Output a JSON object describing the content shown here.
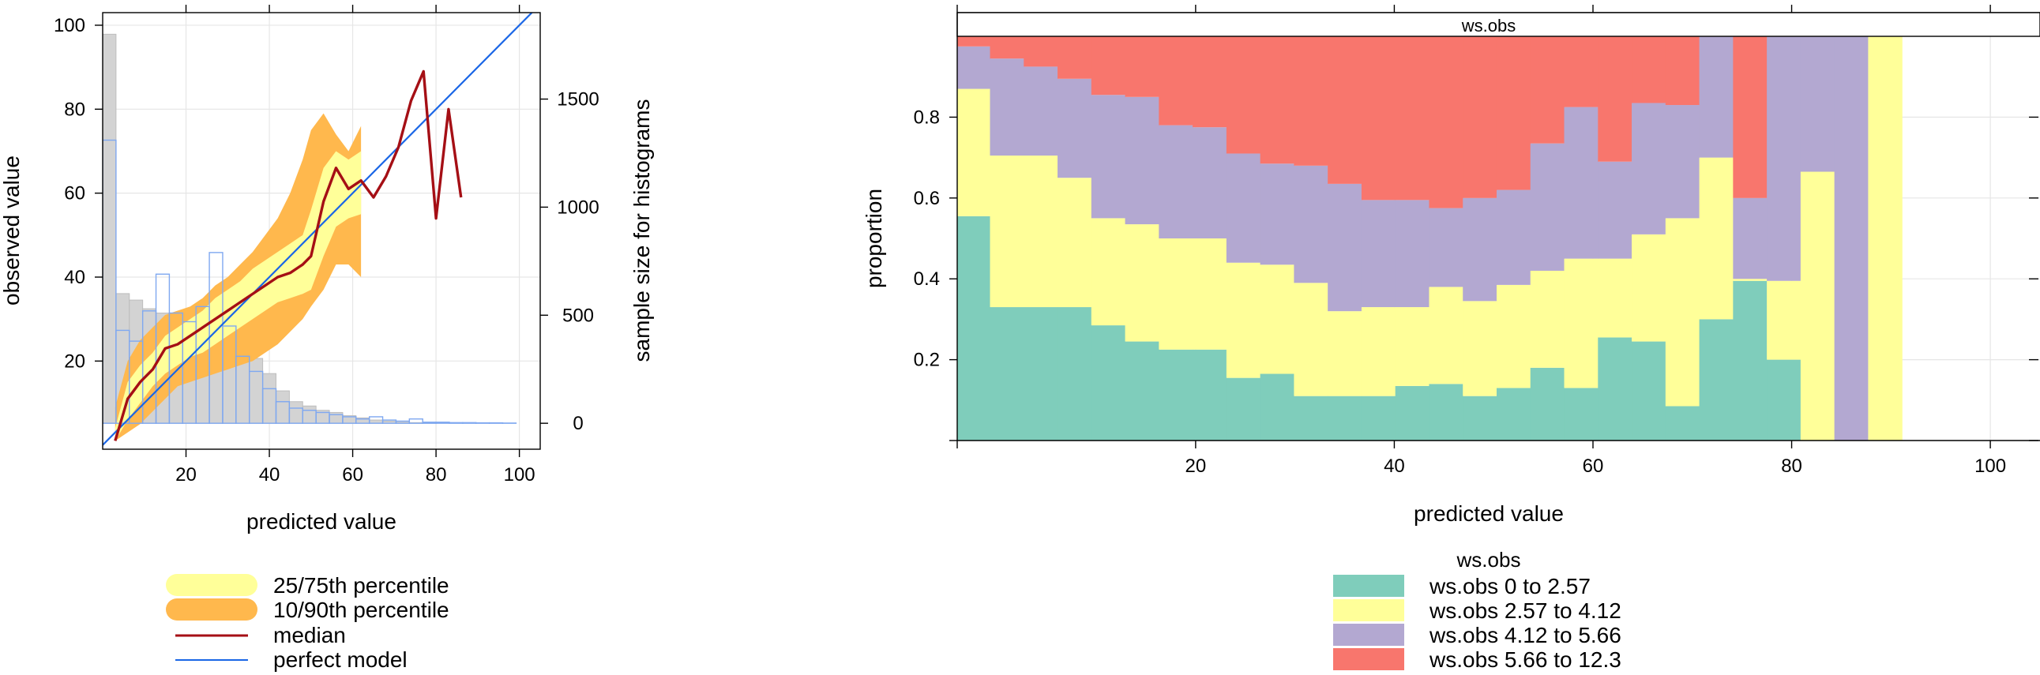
{
  "chart_data": [
    {
      "type": "line",
      "xlabel": "predicted value",
      "ylabel": "observed value",
      "y2label": "sample size for histograms",
      "xlim": [
        0,
        105
      ],
      "ylim": [
        -1,
        103
      ],
      "y2lim": [
        -120,
        1900
      ],
      "x_ticks": [
        "20",
        "40",
        "60",
        "80",
        "100"
      ],
      "y_ticks": [
        "20",
        "40",
        "60",
        "80",
        "100"
      ],
      "y2_ticks": [
        "0",
        "500",
        "1000",
        "1500"
      ],
      "x_tick_values": [
        20,
        40,
        60,
        80,
        100
      ],
      "y_tick_values": [
        20,
        40,
        60,
        80,
        100
      ],
      "y2_tick_values": [
        0,
        500,
        1000,
        1500
      ],
      "grid": true,
      "legend": [
        {
          "label": "25/75th percentile",
          "color": "#FFFF99"
        },
        {
          "label": "10/90th percentile",
          "color": "#FFB84D"
        },
        {
          "label": "median",
          "color": "#A50F15"
        },
        {
          "label": "perfect model",
          "color": "#1A66E6"
        }
      ],
      "median": {
        "x": [
          3,
          6,
          9,
          12,
          15,
          18,
          21,
          24,
          27,
          30,
          33,
          36,
          39,
          42,
          45,
          48,
          50,
          53,
          56,
          59,
          62,
          65,
          68,
          71,
          74,
          77,
          80,
          83,
          86
        ],
        "y": [
          1,
          11,
          15,
          18,
          23,
          24,
          26,
          28,
          30,
          32,
          34,
          36,
          38,
          40,
          41,
          43,
          45,
          58,
          66,
          61,
          63,
          59,
          64,
          71,
          82,
          89,
          54,
          80,
          59
        ]
      },
      "band_25_75": {
        "x": [
          3,
          6,
          9,
          12,
          15,
          18,
          21,
          24,
          27,
          30,
          33,
          36,
          39,
          42,
          45,
          48,
          50,
          53,
          56,
          59,
          62
        ],
        "low": [
          1,
          6,
          10,
          14,
          17,
          19,
          21,
          22,
          24,
          26,
          28,
          30,
          32,
          34,
          35,
          36,
          37,
          45,
          52,
          54,
          55
        ],
        "high": [
          4,
          15,
          19,
          22,
          26,
          28,
          30,
          32,
          35,
          37,
          39,
          42,
          44,
          46,
          48,
          50,
          56,
          66,
          70,
          68,
          70
        ]
      },
      "band_10_90": {
        "x": [
          3,
          6,
          9,
          12,
          15,
          18,
          21,
          24,
          27,
          30,
          33,
          36,
          39,
          42,
          45,
          48,
          50,
          53,
          56,
          59,
          62
        ],
        "low": [
          1,
          3,
          5,
          8,
          11,
          14,
          15,
          16,
          17,
          18,
          19,
          20,
          22,
          24,
          27,
          30,
          33,
          37,
          43,
          43,
          40
        ],
        "high": [
          9,
          20,
          25,
          28,
          31,
          32,
          33,
          35,
          38,
          40,
          43,
          46,
          50,
          54,
          60,
          68,
          75,
          79,
          74,
          70,
          76
        ]
      },
      "histogram_observed": {
        "bin_width": 3.2,
        "x": [
          1.6,
          4.8,
          8.0,
          11.2,
          14.4,
          17.6,
          20.8,
          24.0,
          27.2,
          30.4,
          33.6,
          36.8,
          40.0,
          43.2,
          46.4,
          49.6,
          52.8,
          56.0,
          59.2,
          62.4,
          65.6,
          68.8,
          72.0,
          75.2,
          78.4
        ],
        "count": [
          1800,
          600,
          570,
          530,
          510,
          490,
          470,
          460,
          440,
          400,
          370,
          300,
          230,
          150,
          100,
          80,
          60,
          50,
          35,
          25,
          15,
          10,
          5,
          3,
          2
        ],
        "color": "#D3D3D3"
      },
      "histogram_predicted": {
        "bin_width": 3.2,
        "x": [
          1.6,
          4.8,
          8.0,
          11.2,
          14.4,
          17.6,
          20.8,
          24.0,
          27.2,
          30.4,
          33.6,
          36.8,
          40.0,
          43.2,
          46.4,
          49.6,
          52.8,
          56.0,
          59.2,
          62.4,
          65.6,
          68.8,
          72.0,
          75.2,
          78.4,
          81.6,
          84.8,
          88.0,
          91.2,
          94.4,
          97.6
        ],
        "count": [
          1310,
          430,
          380,
          520,
          690,
          510,
          470,
          540,
          790,
          450,
          310,
          240,
          160,
          100,
          70,
          60,
          50,
          40,
          30,
          20,
          30,
          15,
          10,
          20,
          5,
          5,
          3,
          3,
          2,
          2,
          1
        ],
        "color": "#7FA8F0"
      },
      "perfect_model": {
        "x": [
          0,
          103
        ],
        "y": [
          0,
          103
        ]
      }
    },
    {
      "type": "area",
      "strip_title": "ws.obs",
      "xlabel": "predicted value",
      "ylabel": "proportion",
      "xlim": [
        -4,
        105
      ],
      "ylim": [
        0,
        1
      ],
      "x_ticks": [
        "20",
        "40",
        "60",
        "80",
        "100"
      ],
      "y_ticks": [
        "0.2",
        "0.4",
        "0.6",
        "0.8"
      ],
      "x_tick_values": [
        20,
        40,
        60,
        80,
        100
      ],
      "y_tick_values": [
        0.2,
        0.4,
        0.6,
        0.8
      ],
      "grid": true,
      "legend_title": "ws.obs",
      "legend_position": "bottom",
      "series": [
        {
          "name": "ws.obs 0 to 2.57",
          "color": "#7FCDBB"
        },
        {
          "name": "ws.obs 2.57 to 4.12",
          "color": "#FFFF99"
        },
        {
          "name": "ws.obs 4.12 to 5.66",
          "color": "#B3A8D1"
        },
        {
          "name": "ws.obs 5.66 to 12.3",
          "color": "#F8766D"
        }
      ],
      "bin_edges": [
        -4.1,
        -0.7,
        2.7,
        6.1,
        9.5,
        12.9,
        16.3,
        19.7,
        23.1,
        26.5,
        29.9,
        33.3,
        36.7,
        40.1,
        43.5,
        46.9,
        50.3,
        53.7,
        57.1,
        60.5,
        63.9,
        67.3,
        70.7,
        74.1,
        77.5,
        80.9,
        84.3,
        87.7
      ],
      "cumulative": [
        [
          0.555,
          0.87,
          0.975
        ],
        [
          0.33,
          0.705,
          0.945
        ],
        [
          0.33,
          0.705,
          0.925
        ],
        [
          0.33,
          0.65,
          0.895
        ],
        [
          0.285,
          0.55,
          0.855
        ],
        [
          0.245,
          0.535,
          0.85
        ],
        [
          0.225,
          0.5,
          0.78
        ],
        [
          0.225,
          0.5,
          0.775
        ],
        [
          0.155,
          0.44,
          0.71
        ],
        [
          0.165,
          0.435,
          0.685
        ],
        [
          0.11,
          0.39,
          0.68
        ],
        [
          0.11,
          0.32,
          0.635
        ],
        [
          0.11,
          0.33,
          0.595
        ],
        [
          0.135,
          0.33,
          0.595
        ],
        [
          0.14,
          0.38,
          0.575
        ],
        [
          0.11,
          0.345,
          0.6
        ],
        [
          0.13,
          0.385,
          0.62
        ],
        [
          0.18,
          0.42,
          0.735
        ],
        [
          0.13,
          0.45,
          0.825
        ],
        [
          0.255,
          0.45,
          0.69
        ],
        [
          0.245,
          0.51,
          0.835
        ],
        [
          0.085,
          0.55,
          0.83
        ],
        [
          0.3,
          0.7,
          1.0
        ],
        [
          0.395,
          0.4,
          0.6
        ],
        [
          0.2,
          0.395,
          1.0
        ],
        [
          0.0,
          0.665,
          1.0
        ],
        [
          0.0,
          0.0,
          1.0
        ],
        [
          0.0,
          1.0,
          1.0
        ]
      ]
    }
  ]
}
